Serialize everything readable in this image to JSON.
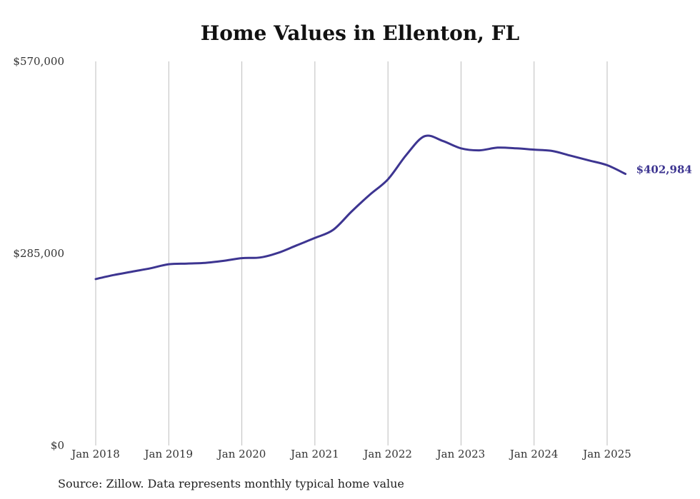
{
  "chart_data": {
    "type": "line",
    "title": "Home Values in Ellenton, FL",
    "xlabel": "",
    "ylabel": "",
    "x_tick_labels": [
      "Jan 2018",
      "Jan 2019",
      "Jan 2020",
      "Jan 2021",
      "Jan 2022",
      "Jan 2023",
      "Jan 2024",
      "Jan 2025"
    ],
    "y_tick_labels": [
      "$0",
      "$285,000",
      "$570,000"
    ],
    "y_ticks": [
      0,
      285000,
      570000
    ],
    "ylim": [
      0,
      570000
    ],
    "xlim": [
      "2018-01",
      "2025-04"
    ],
    "grid": "vertical",
    "legend": "none",
    "colors": {
      "line": "#3d3591",
      "grid": "#bdbdbd"
    },
    "end_label": "$402,984",
    "series": [
      {
        "x": [
          "2018-01",
          "2018-04",
          "2018-07",
          "2018-10",
          "2019-01",
          "2019-04",
          "2019-07",
          "2019-10",
          "2020-01",
          "2020-04",
          "2020-07",
          "2020-10",
          "2021-01",
          "2021-04",
          "2021-07",
          "2021-10",
          "2022-01",
          "2022-04",
          "2022-07",
          "2022-10",
          "2023-01",
          "2023-04",
          "2023-07",
          "2023-10",
          "2024-01",
          "2024-04",
          "2024-07",
          "2024-10",
          "2025-01",
          "2025-04"
        ],
        "values": [
          247000,
          253000,
          258000,
          263000,
          269000,
          270000,
          271000,
          274000,
          278000,
          279000,
          286000,
          297000,
          308000,
          320000,
          347000,
          372000,
          395000,
          431000,
          459000,
          452000,
          441000,
          438000,
          442000,
          441000,
          439000,
          437000,
          430000,
          423000,
          416000,
          403000
        ]
      }
    ]
  },
  "source_note": "Source: Zillow. Data represents monthly typical home value"
}
